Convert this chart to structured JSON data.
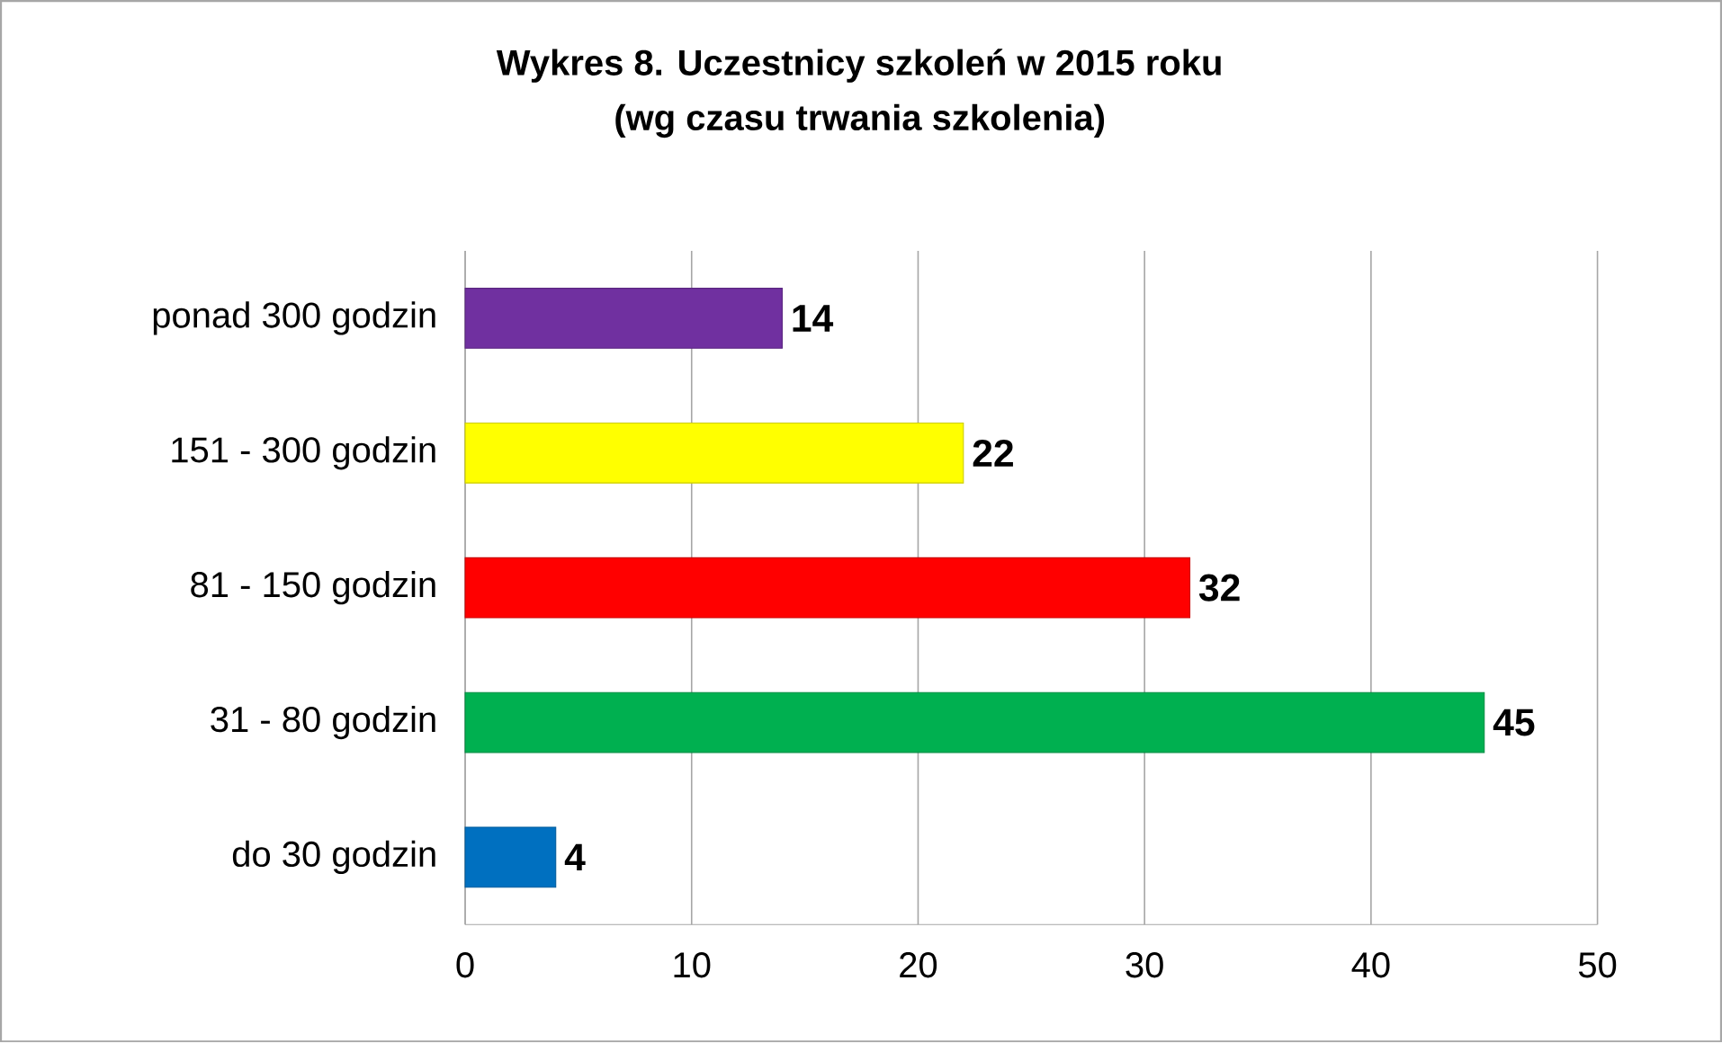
{
  "chart_data": {
    "type": "bar",
    "orientation": "horizontal",
    "title": "Wykres 8. Uczestnicy szkoleń w 2015 roku",
    "subtitle": "(wg czasu trwania szkolenia)",
    "categories": [
      "ponad 300 godzin",
      "151 - 300 godzin",
      "81 - 150 godzin",
      "31 - 80 godzin",
      "do 30 godzin"
    ],
    "values": [
      14,
      22,
      32,
      45,
      4
    ],
    "colors": [
      "#7030a0",
      "#ffff00",
      "#ff0000",
      "#00b050",
      "#0070c0"
    ],
    "xlim": [
      0,
      50
    ],
    "xticks": [
      0,
      10,
      20,
      30,
      40,
      50
    ],
    "grid": "x",
    "data_labels": true
  }
}
